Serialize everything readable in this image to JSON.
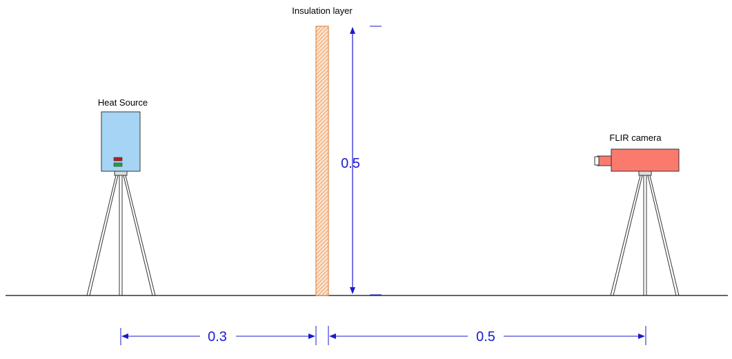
{
  "labels": {
    "insulation": "Insulation layer",
    "heat_source": "Heat Source",
    "camera": "FLIR camera"
  },
  "dimensions": {
    "height": "0.5",
    "source_to_layer": "0.3",
    "layer_to_camera": "0.5"
  },
  "colors": {
    "dimension": "#1a1ad0",
    "heat_source_body": "#a6d4f4",
    "camera_body": "#fa7a6e",
    "insulation": "#f2a06a",
    "indicator_red": "#b02020",
    "indicator_green": "#1fa53a",
    "ground": "#333333"
  }
}
